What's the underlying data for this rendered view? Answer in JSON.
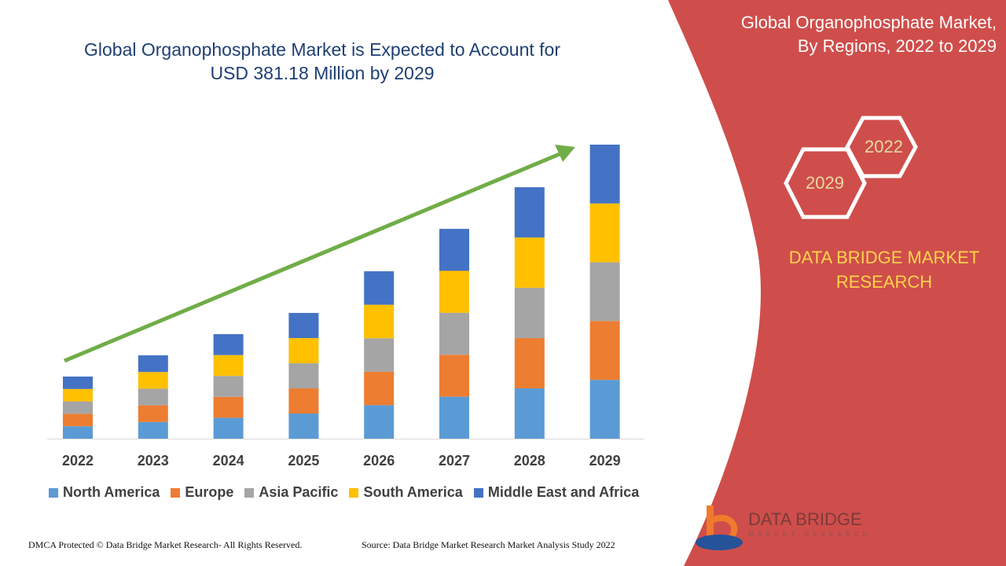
{
  "title_line1": "Global Organophosphate Market is Expected to Account for",
  "title_line2": "USD 381.18 Million by 2029",
  "side_panel": {
    "title_line1": "Global Organophosphate Market,",
    "title_line2": "By Regions, 2022 to 2029",
    "hex_labels": [
      "2022",
      "2029"
    ],
    "brand_line1": "DATA BRIDGE MARKET",
    "brand_line2": "RESEARCH",
    "logo_text": "DATA BRIDGE",
    "logo_subtext": "MARKET RESEARCH",
    "panel_color": "#cf4e4b"
  },
  "footer": {
    "left": "DMCA Protected © Data Bridge Market Research- All Rights Reserved.",
    "right": "Source: Data Bridge Market Research Market Analysis Study 2022"
  },
  "chart_data": {
    "type": "bar",
    "stacked": true,
    "unit": "USD Million",
    "categories": [
      "2022",
      "2023",
      "2024",
      "2025",
      "2026",
      "2027",
      "2028",
      "2029"
    ],
    "series": [
      {
        "name": "North America",
        "color": "#5b9bd5",
        "values": [
          16.1,
          21.6,
          27.1,
          32.6,
          43.4,
          54.4,
          65.2,
          76.24
        ]
      },
      {
        "name": "Europe",
        "color": "#ed7d31",
        "values": [
          16.1,
          21.6,
          27.1,
          32.6,
          43.4,
          54.4,
          65.2,
          76.24
        ]
      },
      {
        "name": "Asia Pacific",
        "color": "#a5a5a5",
        "values": [
          16.1,
          21.6,
          27.1,
          32.6,
          43.4,
          54.4,
          65.2,
          76.23
        ]
      },
      {
        "name": "South America",
        "color": "#ffc000",
        "values": [
          16.1,
          21.6,
          27.1,
          32.6,
          43.4,
          54.4,
          65.2,
          76.23
        ]
      },
      {
        "name": "Middle East and Africa",
        "color": "#4472c4",
        "values": [
          16.1,
          21.6,
          27.1,
          32.6,
          43.4,
          54.4,
          65.2,
          76.24
        ]
      }
    ],
    "trend_arrow_color": "#70ad47",
    "legend_position": "bottom",
    "grid": false
  }
}
